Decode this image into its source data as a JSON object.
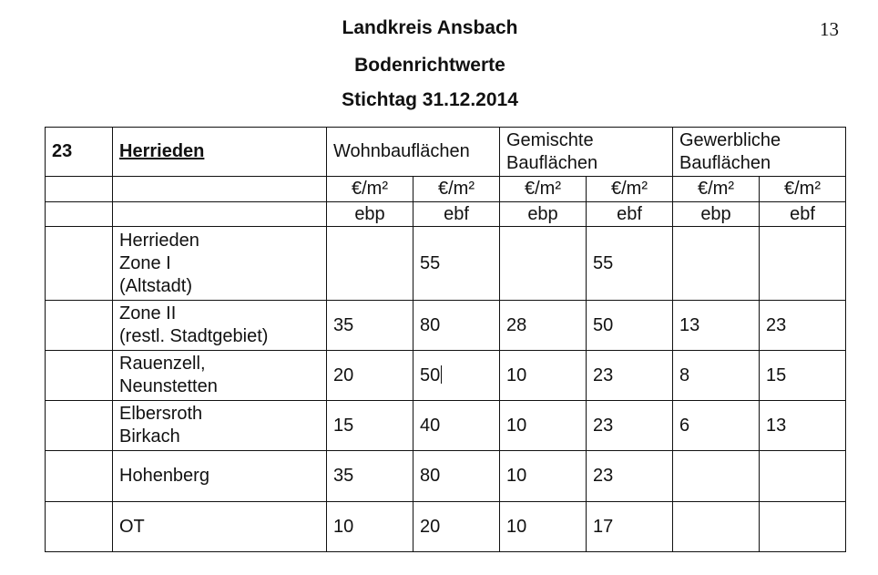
{
  "header": {
    "title": "Landkreis Ansbach",
    "subtitle": "Bodenrichtwerte",
    "date_line": "Stichtag  31.12.2014",
    "page_number": "13"
  },
  "table": {
    "section_number": "23",
    "section_name": "Herrieden",
    "groups": [
      "Wohnbauflächen",
      "Gemischte\nBauflächen",
      "Gewerbliche\nBauflächen"
    ],
    "unit": "€/m²",
    "types": [
      "ebp",
      "ebf",
      "ebp",
      "ebf",
      "ebp",
      "ebf"
    ],
    "rows": [
      {
        "name": "Herrieden\nZone I\n(Altstadt)",
        "values": [
          "",
          "55",
          "",
          "55",
          "",
          ""
        ]
      },
      {
        "name": "Zone II\n(restl. Stadtgebiet)",
        "values": [
          "35",
          "80",
          "28",
          "50",
          "13",
          "23"
        ]
      },
      {
        "name": "Rauenzell,\nNeunstetten",
        "values": [
          "20",
          "50",
          "10",
          "23",
          "8",
          "15"
        ]
      },
      {
        "name": "Elbersroth\nBirkach",
        "values": [
          "15",
          "40",
          "10",
          "23",
          "6",
          "13"
        ]
      },
      {
        "name": "Hohenberg",
        "values": [
          "35",
          "80",
          "10",
          "23",
          "",
          ""
        ]
      },
      {
        "name": "OT",
        "values": [
          "10",
          "20",
          "10",
          "17",
          "",
          ""
        ]
      }
    ]
  }
}
